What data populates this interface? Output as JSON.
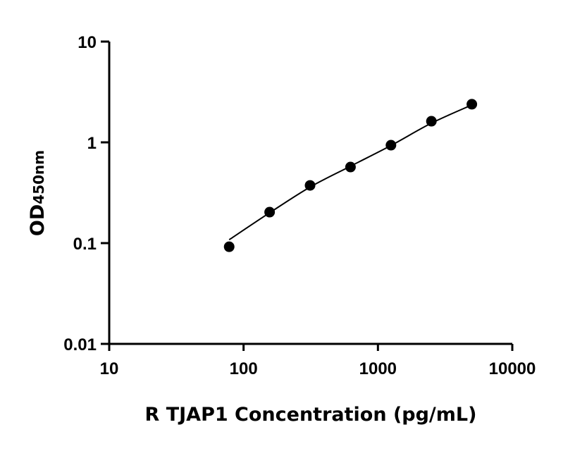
{
  "chart_data": {
    "type": "scatter",
    "title": "",
    "xlabel": "R TJAP1 Concentration (pg/mL)",
    "ylabel_main": "OD",
    "ylabel_sub": "450nm",
    "xscale": "log",
    "yscale": "log",
    "xlim": [
      10,
      10000
    ],
    "ylim": [
      0.01,
      10
    ],
    "xticks": [
      "10",
      "100",
      "1000",
      "10000"
    ],
    "yticks": [
      "0.01",
      "0.1",
      "1",
      "10"
    ],
    "grid": false,
    "marker_color": "#000000",
    "series": [
      {
        "x": [
          78.125,
          156.25,
          312.5,
          625,
          1250,
          2500,
          5000
        ],
        "y": [
          0.092,
          0.203,
          0.374,
          0.569,
          0.937,
          1.62,
          2.39
        ]
      }
    ],
    "fit": {
      "x": [
        78.125,
        156.25,
        312.5,
        625,
        1250,
        2500,
        5000
      ],
      "y": [
        0.108,
        0.2,
        0.36,
        0.58,
        0.93,
        1.55,
        2.35
      ]
    }
  }
}
